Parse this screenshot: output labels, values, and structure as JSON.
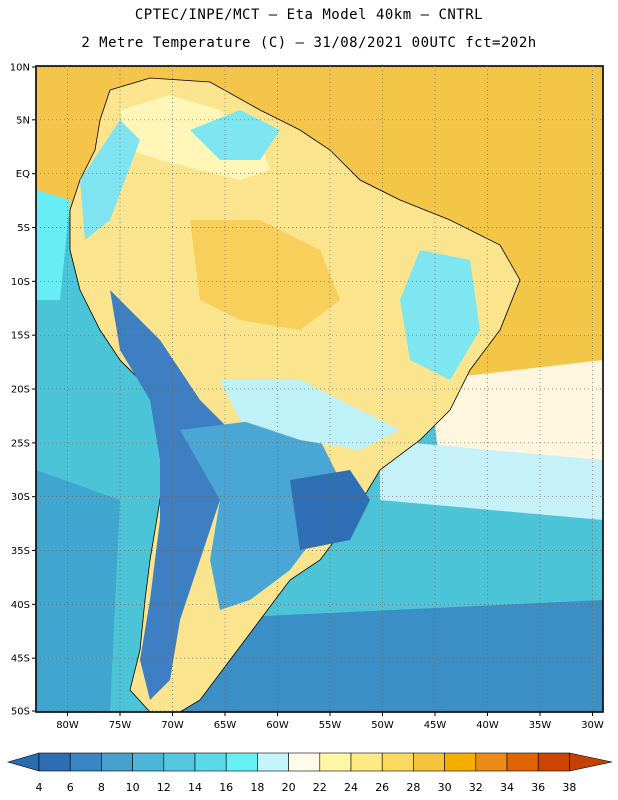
{
  "title": {
    "line1": "CPTEC/INPE/MCT –  Eta Model 40km – CNTRL",
    "line2": "2 Metre Temperature (C) – 31/08/2021 00UTC fct=202h"
  },
  "map": {
    "lat_labels": [
      "10N",
      "5N",
      "EQ",
      "5S",
      "10S",
      "15S",
      "20S",
      "25S",
      "30S",
      "35S",
      "40S",
      "45S",
      "50S"
    ],
    "lon_labels": [
      "80W",
      "75W",
      "70W",
      "65W",
      "60W",
      "55W",
      "50W",
      "45W",
      "40W",
      "35W",
      "30W"
    ],
    "lat_range": [
      10,
      -50
    ],
    "lon_range": [
      -83,
      -29
    ]
  },
  "colorbar": {
    "labels": [
      "4",
      "6",
      "8",
      "10",
      "12",
      "14",
      "16",
      "18",
      "20",
      "22",
      "24",
      "26",
      "28",
      "30",
      "32",
      "34",
      "36",
      "38"
    ],
    "colors": [
      "#2e6db3",
      "#3a86c2",
      "#48a0cf",
      "#4cb5d8",
      "#55c7de",
      "#5cd9e8",
      "#66f0f5",
      "#c6f4fb",
      "#fefbe8",
      "#fff7a8",
      "#feea84",
      "#fbd860",
      "#f5c43c",
      "#f5ae00",
      "#ec8c18",
      "#e06400",
      "#cc4400"
    ],
    "below_color": "#2a6cb0",
    "above_color": "#c24000"
  }
}
